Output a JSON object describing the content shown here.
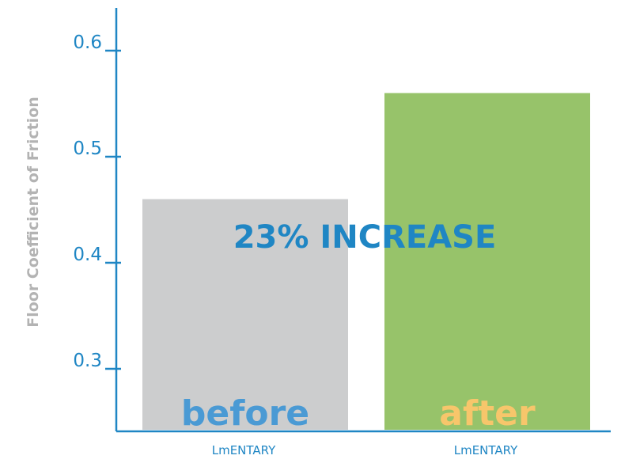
{
  "chart_data": {
    "type": "bar",
    "title": "",
    "xlabel": "",
    "ylabel": "Floor Coefficient of Friction",
    "ylim": [
      0.2,
      0.65
    ],
    "yticks": [
      0.3,
      0.4,
      0.5,
      0.6
    ],
    "ytick_labels": [
      "0.3",
      "0.4",
      "0.5",
      "0.6"
    ],
    "grid": false,
    "categories": [
      "LmENTARY",
      "LmENTARY"
    ],
    "values": [
      0.46,
      0.56
    ],
    "bar_labels": [
      "before",
      "after"
    ],
    "annotation": "23% INCREASE"
  },
  "colors": {
    "axis": "#1f86c4",
    "ylabel": "#b3b3b3",
    "annotation": "#1f86c4",
    "bars": [
      "#cccdce",
      "#97c36a"
    ],
    "bar_labels": [
      "#4a9ad4",
      "#f7c66b"
    ]
  }
}
